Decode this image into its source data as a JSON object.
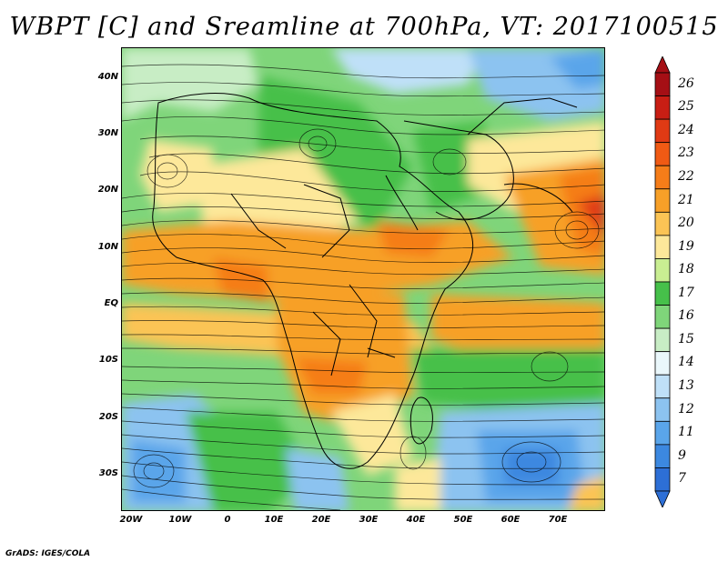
{
  "title": "WBPT [C] and Sreamline at 700hPa, VT: 2017100515",
  "credit": "GrADS: IGES/COLA",
  "map": {
    "lat_labels": [
      "40N",
      "30N",
      "20N",
      "10N",
      "EQ",
      "10S",
      "20S",
      "30S"
    ],
    "lon_labels": [
      "20W",
      "10W",
      "0",
      "10E",
      "20E",
      "30E",
      "40E",
      "50E",
      "60E",
      "70E"
    ]
  },
  "colorbar": {
    "levels": [
      "26",
      "25",
      "24",
      "23",
      "22",
      "21",
      "20",
      "19",
      "18",
      "17",
      "16",
      "15",
      "14",
      "13",
      "12",
      "11",
      "9",
      "7"
    ],
    "colors": [
      "#a50f15",
      "#c81e14",
      "#e03a14",
      "#f05a14",
      "#f57d19",
      "#f7a028",
      "#fbc455",
      "#fde89a",
      "#c9ee92",
      "#46c04a",
      "#7fd57a",
      "#c8edc5",
      "#eaf7fb",
      "#bfe0f8",
      "#8cc3f0",
      "#5aa5ea",
      "#3c88e0",
      "#2d6fd6"
    ]
  }
}
